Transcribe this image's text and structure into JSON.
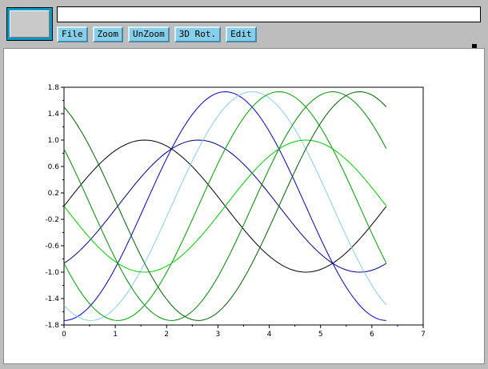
{
  "window": {
    "message_text": ""
  },
  "toolbar": {
    "buttons": [
      {
        "id": "file",
        "label": "File"
      },
      {
        "id": "zoom",
        "label": "Zoom"
      },
      {
        "id": "unzoom",
        "label": "UnZoom"
      },
      {
        "id": "rot3d",
        "label": "3D Rot."
      },
      {
        "id": "edit",
        "label": "Edit"
      }
    ]
  },
  "colors": {
    "button_face": "#87ceeb",
    "window_bg": "#bdbdbd",
    "preview_border": "#0099cc"
  },
  "chart_data": {
    "type": "line",
    "title": "",
    "xlabel": "",
    "ylabel": "",
    "xlim": [
      0,
      7
    ],
    "ylim": [
      -1.8,
      1.8
    ],
    "x_ticks": [
      0,
      1,
      2,
      3,
      4,
      5,
      6,
      7
    ],
    "y_ticks": [
      -1.8,
      -1.4,
      -1.0,
      -0.6,
      -0.2,
      0.2,
      0.6,
      1.0,
      1.4,
      1.8
    ],
    "y_tick_labels": [
      "-1.8",
      "-1.4",
      "-1.0",
      "-0.6",
      "-0.2",
      "0.2",
      "0.6",
      "1.0",
      "1.4",
      "1.8"
    ],
    "grid": false,
    "x_range": [
      0,
      6.28
    ],
    "series": [
      {
        "color": "#000000",
        "amplitude": 1.0,
        "phase": 0.0
      },
      {
        "color": "#00008b",
        "amplitude": 1.0,
        "phase": 1.047
      },
      {
        "color": "#0000cd",
        "amplitude": 1.732,
        "phase": 1.571
      },
      {
        "color": "#87ceeb",
        "amplitude": 1.732,
        "phase": 2.094
      },
      {
        "color": "#00a000",
        "amplitude": 1.732,
        "phase": 2.618
      },
      {
        "color": "#00cc00",
        "amplitude": 1.0,
        "phase": 3.142
      },
      {
        "color": "#008b00",
        "amplitude": 1.732,
        "phase": 3.665
      },
      {
        "color": "#006400",
        "amplitude": 1.732,
        "phase": 4.189
      }
    ]
  }
}
